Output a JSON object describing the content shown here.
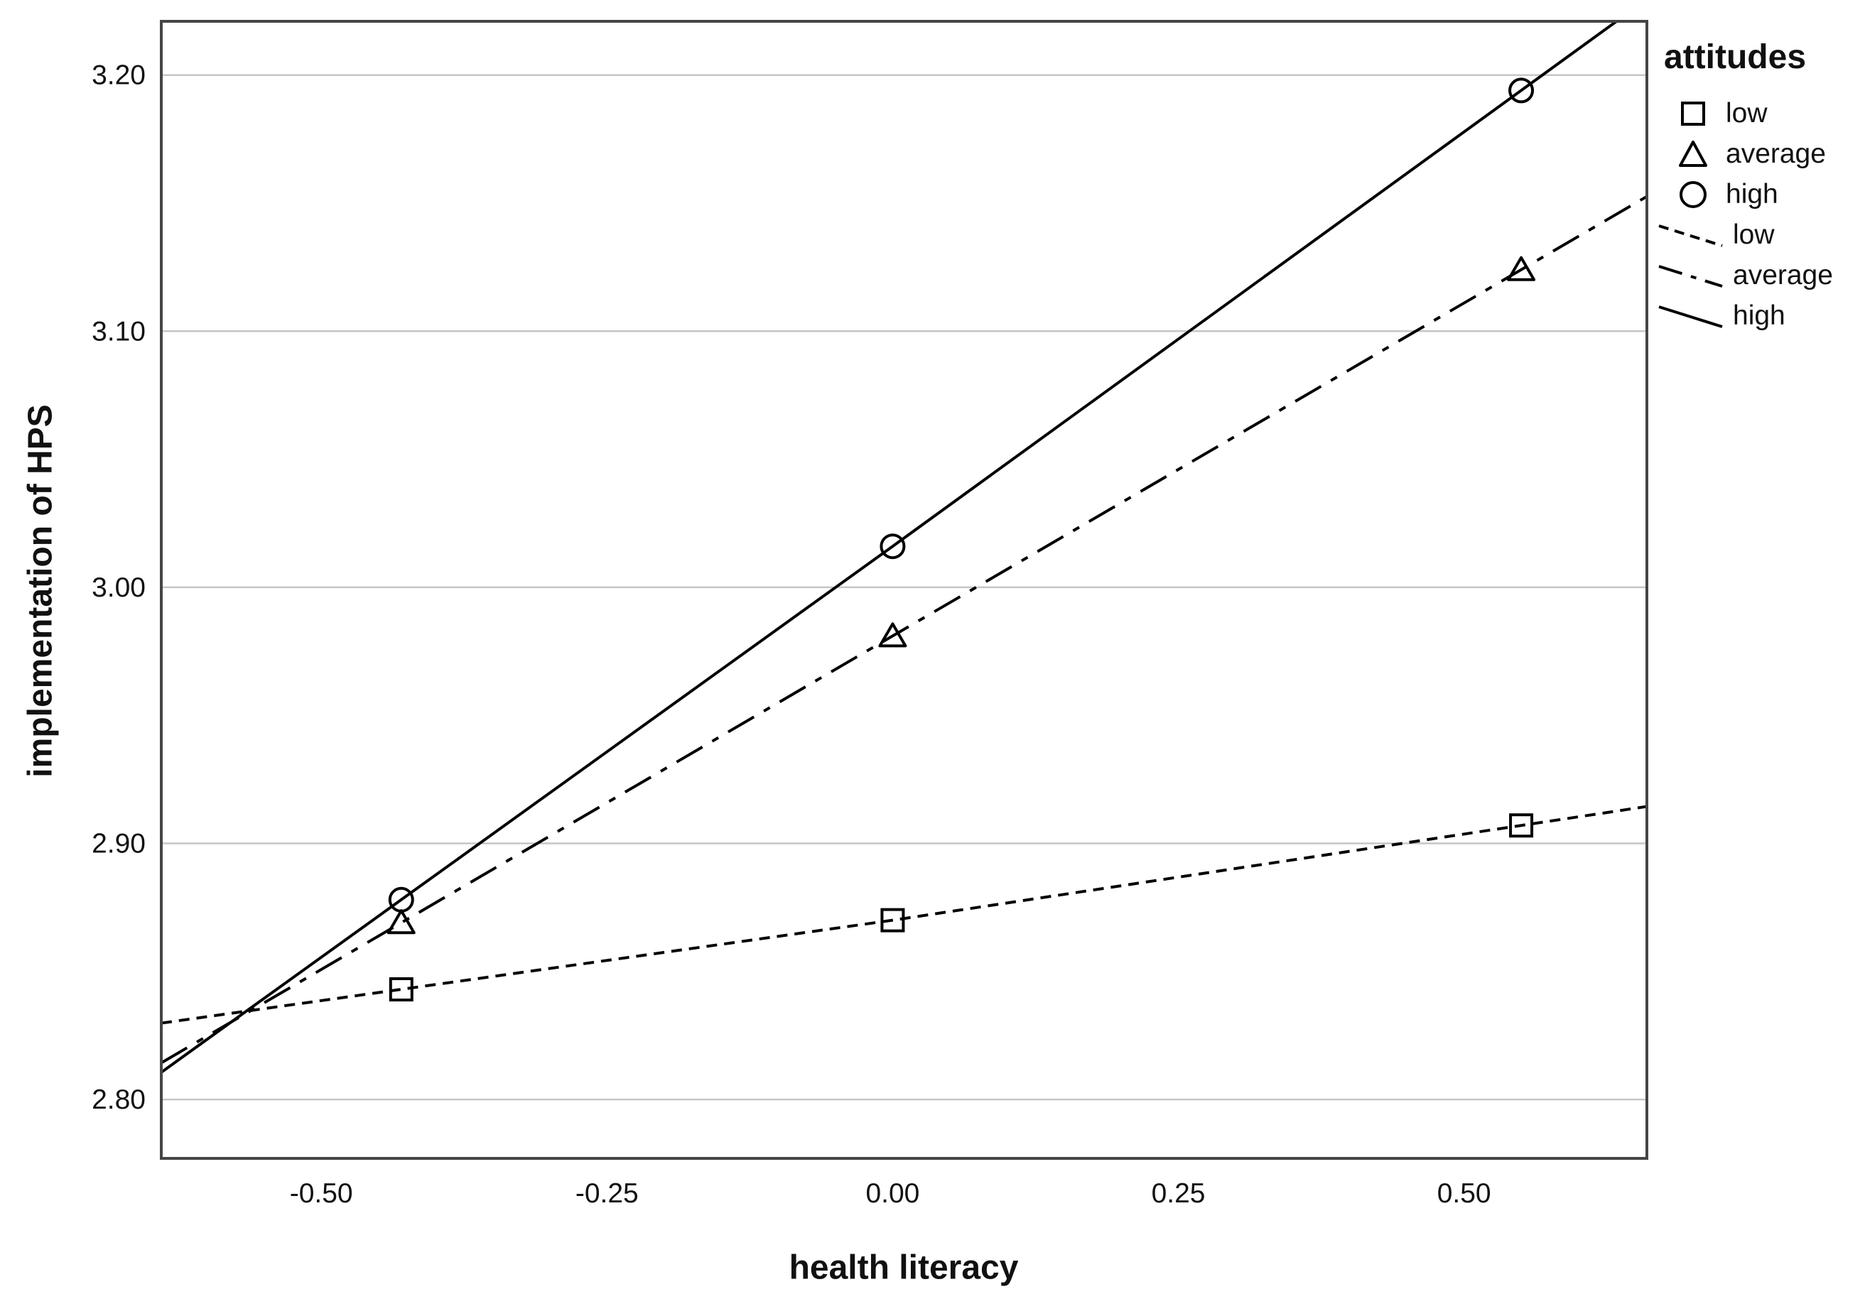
{
  "chart_data": {
    "type": "line",
    "title": "",
    "xlabel": "health literacy",
    "ylabel": "implementation of HPS",
    "xlim": [
      -0.64,
      0.66
    ],
    "ylim": [
      2.777,
      3.221
    ],
    "grid": "horizontal",
    "xticks": [
      {
        "value": -0.5,
        "label": "-0.50"
      },
      {
        "value": -0.25,
        "label": "-0.25"
      },
      {
        "value": 0.0,
        "label": "0.00"
      },
      {
        "value": 0.25,
        "label": "0.25"
      },
      {
        "value": 0.5,
        "label": "0.50"
      }
    ],
    "yticks": [
      {
        "value": 2.8,
        "label": "2.80"
      },
      {
        "value": 2.9,
        "label": "2.90"
      },
      {
        "value": 3.0,
        "label": "3.00"
      },
      {
        "value": 3.1,
        "label": "3.10"
      },
      {
        "value": 3.2,
        "label": "3.20"
      }
    ],
    "x": [
      -0.43,
      0.0,
      0.55
    ],
    "series": [
      {
        "name": "low",
        "marker": "square",
        "line_style": "dashed",
        "values": [
          2.843,
          2.87,
          2.907
        ]
      },
      {
        "name": "average",
        "marker": "triangle",
        "line_style": "dash-dot",
        "values": [
          2.869,
          2.981,
          3.124
        ]
      },
      {
        "name": "high",
        "marker": "circle",
        "line_style": "solid",
        "values": [
          2.878,
          3.016,
          3.194
        ]
      }
    ],
    "legend": {
      "title": "attitudes",
      "position": "top-right-outside",
      "marker_items": [
        {
          "label": "low",
          "marker": "square"
        },
        {
          "label": "average",
          "marker": "triangle"
        },
        {
          "label": "high",
          "marker": "circle"
        }
      ],
      "line_items": [
        {
          "label": "low",
          "style": "dashed"
        },
        {
          "label": "average",
          "style": "dash-dot"
        },
        {
          "label": "high",
          "style": "solid"
        }
      ]
    },
    "colors": {
      "line": "#000000",
      "gridline": "#c6c6c6",
      "frame": "#454545",
      "text": "#111111",
      "background": "#ffffff"
    }
  }
}
